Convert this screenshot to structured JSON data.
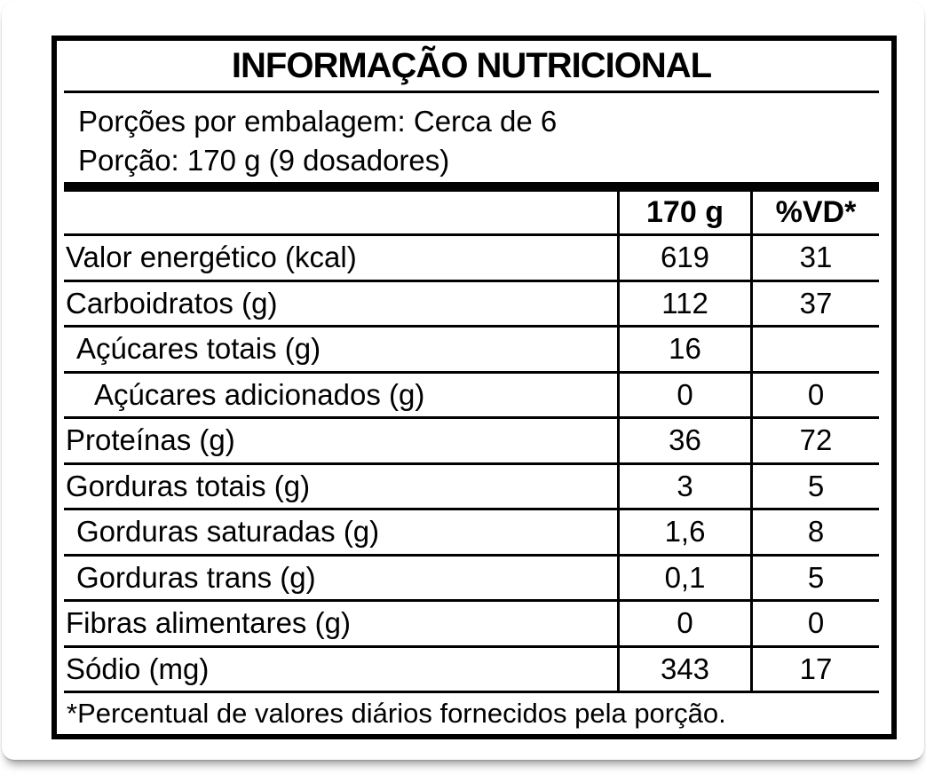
{
  "title": "INFORMAÇÃO NUTRICIONAL",
  "serving_info": {
    "servings_per_package": "Porções por embalagem: Cerca de 6",
    "serving_size": "Porção: 170 g (9 dosadores)"
  },
  "table": {
    "column_headers": {
      "nutrient": "",
      "amount": "170 g",
      "daily_value": "%VD*"
    },
    "rows": [
      {
        "label": "Valor energético (kcal)",
        "amount": "619",
        "daily_value": "31",
        "indent": 0
      },
      {
        "label": "Carboidratos (g)",
        "amount": "112",
        "daily_value": "37",
        "indent": 0
      },
      {
        "label": "Açúcares totais (g)",
        "amount": "16",
        "daily_value": "",
        "indent": 1
      },
      {
        "label": "Açúcares adicionados (g)",
        "amount": "0",
        "daily_value": "0",
        "indent": 2
      },
      {
        "label": "Proteínas (g)",
        "amount": "36",
        "daily_value": "72",
        "indent": 0
      },
      {
        "label": "Gorduras totais (g)",
        "amount": "3",
        "daily_value": "5",
        "indent": 0
      },
      {
        "label": "Gorduras saturadas (g)",
        "amount": "1,6",
        "daily_value": "8",
        "indent": 1
      },
      {
        "label": "Gorduras trans (g)",
        "amount": "0,1",
        "daily_value": "5",
        "indent": 1
      },
      {
        "label": "Fibras alimentares (g)",
        "amount": "0",
        "daily_value": "0",
        "indent": 0
      },
      {
        "label": "Sódio (mg)",
        "amount": "343",
        "daily_value": "17",
        "indent": 0
      }
    ],
    "footnote": "*Percentual de valores diários fornecidos pela porção."
  },
  "colors": {
    "border": "#000000",
    "text": "#000000",
    "background": "#ffffff"
  }
}
